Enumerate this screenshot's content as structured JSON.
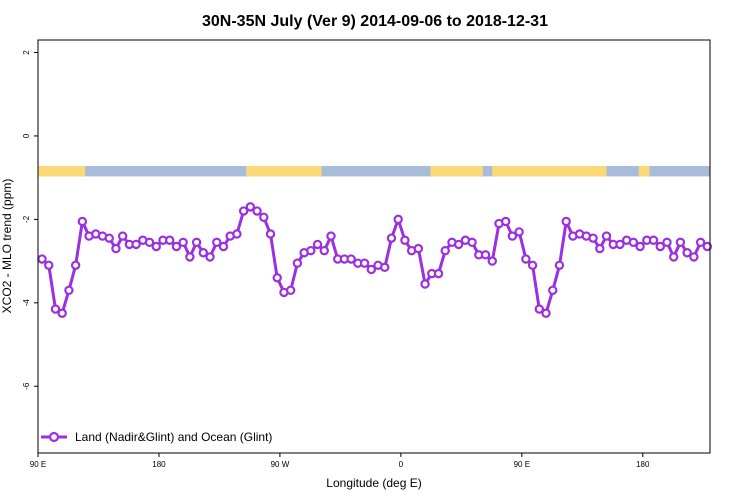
{
  "chart_data": {
    "type": "line",
    "title": "30N-35N July (Ver 9)   2014-09-06 to 2018-12-31",
    "xlabel": "Longitude (deg E)",
    "ylabel": "XCO2 - MLO trend (ppm)",
    "xlim": [
      90,
      590
    ],
    "ylim": [
      -7.6,
      2.3
    ],
    "x_ticks": [
      {
        "value": 90,
        "label": "90 E"
      },
      {
        "value": 180,
        "label": "180"
      },
      {
        "value": 270,
        "label": "90 W"
      },
      {
        "value": 360,
        "label": "0"
      },
      {
        "value": 450,
        "label": "90 E"
      },
      {
        "value": 540,
        "label": "180"
      }
    ],
    "y_ticks": [
      {
        "value": 2,
        "label": "2"
      },
      {
        "value": 0,
        "label": "0"
      },
      {
        "value": -2,
        "label": "-2"
      },
      {
        "value": -4,
        "label": "-4"
      },
      {
        "value": -6,
        "label": "-6"
      }
    ],
    "legend_position": "bottom-left",
    "grid": false,
    "land_ocean_band": {
      "y_range": [
        -0.97,
        -0.72
      ],
      "ocean_color": "#a8bcd9",
      "land_color": "#fcd877",
      "land_segments": [
        [
          90,
          125
        ],
        [
          245,
          301
        ],
        [
          382,
          421
        ],
        [
          428,
          513
        ],
        [
          537,
          545
        ]
      ]
    },
    "series": [
      {
        "name": "Land (Nadir&Glint) and Ocean (Glint)",
        "color": "#9b30e0",
        "x": [
          93,
          98,
          103,
          108,
          113,
          118,
          123,
          128,
          133,
          138,
          143,
          148,
          153,
          158,
          163,
          168,
          173,
          178,
          183,
          188,
          193,
          198,
          203,
          208,
          213,
          218,
          223,
          228,
          233,
          238,
          243,
          248,
          253,
          258,
          263,
          268,
          273,
          278,
          283,
          288,
          293,
          298,
          303,
          308,
          313,
          318,
          323,
          328,
          333,
          338,
          343,
          348,
          353,
          358,
          363,
          368,
          373,
          378,
          383,
          388,
          393,
          398,
          403,
          408,
          413,
          418,
          423,
          428,
          433,
          438,
          443,
          448,
          453,
          458,
          463,
          468,
          473,
          478,
          483,
          488,
          493,
          498,
          503,
          508,
          513,
          518,
          523,
          528,
          533,
          538,
          543,
          548,
          553,
          558,
          563,
          568,
          573,
          578,
          583,
          588
        ],
        "y": [
          -2.95,
          -3.1,
          -4.15,
          -4.25,
          -3.7,
          -3.1,
          -2.05,
          -2.4,
          -2.35,
          -2.4,
          -2.45,
          -2.7,
          -2.4,
          -2.6,
          -2.6,
          -2.5,
          -2.55,
          -2.65,
          -2.5,
          -2.5,
          -2.65,
          -2.55,
          -2.9,
          -2.55,
          -2.8,
          -2.9,
          -2.55,
          -2.65,
          -2.4,
          -2.35,
          -1.8,
          -1.7,
          -1.8,
          -1.95,
          -2.35,
          -3.4,
          -3.75,
          -3.7,
          -3.05,
          -2.8,
          -2.75,
          -2.6,
          -2.75,
          -2.4,
          -2.95,
          -2.95,
          -2.95,
          -3.05,
          -3.05,
          -3.2,
          -3.1,
          -3.15,
          -2.45,
          -2.0,
          -2.5,
          -2.75,
          -2.7,
          -3.55,
          -3.3,
          -3.3,
          -2.75,
          -2.55,
          -2.6,
          -2.5,
          -2.55,
          -2.85,
          -2.85,
          -3.0,
          -2.1,
          -2.05,
          -2.4,
          -2.3,
          -2.95,
          -3.1,
          -4.15,
          -4.25,
          -3.7,
          -3.1,
          -2.05,
          -2.4,
          -2.35,
          -2.4,
          -2.45,
          -2.7,
          -2.4,
          -2.6,
          -2.6,
          -2.5,
          -2.55,
          -2.65,
          -2.5,
          -2.5,
          -2.65,
          -2.55,
          -2.9,
          -2.55,
          -2.8,
          -2.9,
          -2.55,
          -2.65
        ]
      }
    ]
  }
}
